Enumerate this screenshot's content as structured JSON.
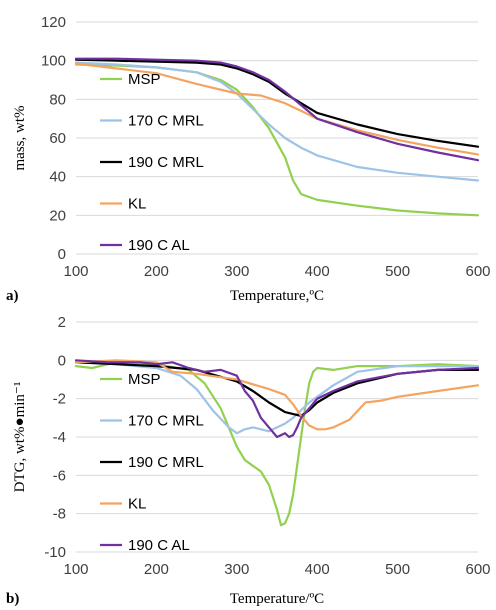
{
  "colors": {
    "MSP": "#92d050",
    "170 C MRL": "#9dc3e6",
    "190 C MRL": "#000000",
    "KL": "#f4a460",
    "190 C AL": "#7030a0"
  },
  "chart_data": [
    {
      "type": "line",
      "panel_label": "a)",
      "xlabel": "Temperature,ºC",
      "ylabel": "mass, wt%",
      "xlim": [
        100,
        600
      ],
      "ylim": [
        0,
        120
      ],
      "xticks": [
        100,
        200,
        300,
        400,
        500,
        600
      ],
      "yticks": [
        0,
        20,
        40,
        60,
        80,
        100,
        120
      ],
      "grid": true,
      "legend": "left-center",
      "series": [
        {
          "name": "MSP",
          "x": [
            100,
            150,
            200,
            250,
            280,
            300,
            320,
            340,
            360,
            370,
            380,
            400,
            450,
            500,
            550,
            600
          ],
          "y": [
            98,
            97.5,
            96.5,
            94,
            90,
            85,
            76,
            65,
            50,
            38,
            31,
            28,
            25,
            22.5,
            21,
            20
          ]
        },
        {
          "name": "170 C MRL",
          "x": [
            100,
            150,
            200,
            250,
            280,
            300,
            320,
            340,
            360,
            380,
            400,
            450,
            500,
            550,
            600
          ],
          "y": [
            99,
            98,
            96.5,
            94,
            89,
            83,
            75,
            67,
            60,
            55,
            51,
            45,
            42,
            40,
            38
          ]
        },
        {
          "name": "190 C MRL",
          "x": [
            100,
            150,
            200,
            250,
            280,
            300,
            320,
            340,
            360,
            380,
            400,
            450,
            500,
            550,
            600
          ],
          "y": [
            100.5,
            100,
            99.5,
            99,
            98,
            96,
            93,
            89,
            83,
            78,
            73,
            67,
            62,
            58.5,
            55.5
          ]
        },
        {
          "name": "KL",
          "x": [
            100,
            150,
            200,
            250,
            300,
            330,
            360,
            380,
            400,
            450,
            500,
            550,
            600
          ],
          "y": [
            98.5,
            96,
            93.5,
            88,
            83,
            82,
            78,
            74,
            70,
            64,
            59,
            55,
            51.5
          ]
        },
        {
          "name": "190 C AL",
          "x": [
            100,
            150,
            200,
            250,
            280,
            300,
            320,
            340,
            360,
            380,
            400,
            450,
            500,
            550,
            600
          ],
          "y": [
            101,
            101,
            100.5,
            100,
            99,
            97,
            94,
            90,
            84,
            77,
            70,
            63,
            57,
            52.5,
            48.5
          ]
        }
      ]
    },
    {
      "type": "line",
      "panel_label": "b)",
      "xlabel": "Temperature/ºC",
      "ylabel": "DTG, wt%●min⁻¹",
      "xlim": [
        100,
        600
      ],
      "ylim": [
        -10,
        2
      ],
      "xticks": [
        100,
        200,
        300,
        400,
        500,
        600
      ],
      "yticks": [
        -10,
        -8,
        -6,
        -4,
        -2,
        0,
        2
      ],
      "grid": true,
      "legend": "left-center",
      "series": [
        {
          "name": "MSP",
          "x": [
            100,
            120,
            140,
            160,
            200,
            240,
            260,
            280,
            300,
            310,
            320,
            330,
            340,
            350,
            355,
            360,
            365,
            370,
            375,
            380,
            385,
            390,
            395,
            400,
            420,
            450,
            500,
            550,
            600
          ],
          "y": [
            -0.3,
            -0.4,
            -0.2,
            -0.1,
            -0.2,
            -0.5,
            -1.2,
            -2.5,
            -4.5,
            -5.2,
            -5.5,
            -5.8,
            -6.5,
            -7.8,
            -8.6,
            -8.5,
            -8,
            -7,
            -5.5,
            -4,
            -2.5,
            -1.2,
            -0.6,
            -0.4,
            -0.5,
            -0.3,
            -0.3,
            -0.2,
            -0.3
          ]
        },
        {
          "name": "170 C MRL",
          "x": [
            100,
            150,
            200,
            230,
            250,
            270,
            290,
            300,
            310,
            320,
            330,
            340,
            350,
            360,
            370,
            380,
            390,
            400,
            420,
            450,
            500,
            550,
            600
          ],
          "y": [
            -0.1,
            -0.2,
            -0.4,
            -0.8,
            -1.5,
            -2.6,
            -3.5,
            -3.8,
            -3.6,
            -3.5,
            -3.6,
            -3.7,
            -3.5,
            -3.3,
            -3,
            -2.6,
            -2.2,
            -1.9,
            -1.3,
            -0.6,
            -0.3,
            -0.3,
            -0.3
          ]
        },
        {
          "name": "190 C MRL",
          "x": [
            100,
            150,
            200,
            250,
            300,
            320,
            340,
            360,
            380,
            390,
            400,
            420,
            450,
            500,
            550,
            600
          ],
          "y": [
            -0.1,
            -0.2,
            -0.3,
            -0.5,
            -1.1,
            -1.6,
            -2.2,
            -2.7,
            -2.9,
            -2.6,
            -2.2,
            -1.7,
            -1.2,
            -0.7,
            -0.5,
            -0.5
          ]
        },
        {
          "name": "KL",
          "x": [
            100,
            150,
            200,
            220,
            250,
            300,
            340,
            360,
            370,
            380,
            390,
            400,
            410,
            420,
            440,
            460,
            480,
            500,
            550,
            600
          ],
          "y": [
            -0.1,
            0,
            -0.1,
            -0.6,
            -0.7,
            -1,
            -1.5,
            -1.8,
            -2.3,
            -2.9,
            -3.4,
            -3.6,
            -3.6,
            -3.5,
            -3.1,
            -2.2,
            -2.1,
            -1.9,
            -1.6,
            -1.3
          ]
        },
        {
          "name": "190 C AL",
          "x": [
            100,
            140,
            180,
            200,
            220,
            240,
            260,
            280,
            300,
            310,
            320,
            330,
            340,
            350,
            360,
            365,
            370,
            375,
            380,
            390,
            400,
            420,
            450,
            500,
            550,
            600
          ],
          "y": [
            0,
            -0.1,
            -0.1,
            -0.2,
            -0.1,
            -0.4,
            -0.6,
            -0.5,
            -0.8,
            -1.6,
            -2.1,
            -3,
            -3.5,
            -4,
            -3.8,
            -4,
            -3.9,
            -3.5,
            -3,
            -2.5,
            -2,
            -1.6,
            -1.1,
            -0.7,
            -0.5,
            -0.4
          ]
        }
      ]
    }
  ]
}
